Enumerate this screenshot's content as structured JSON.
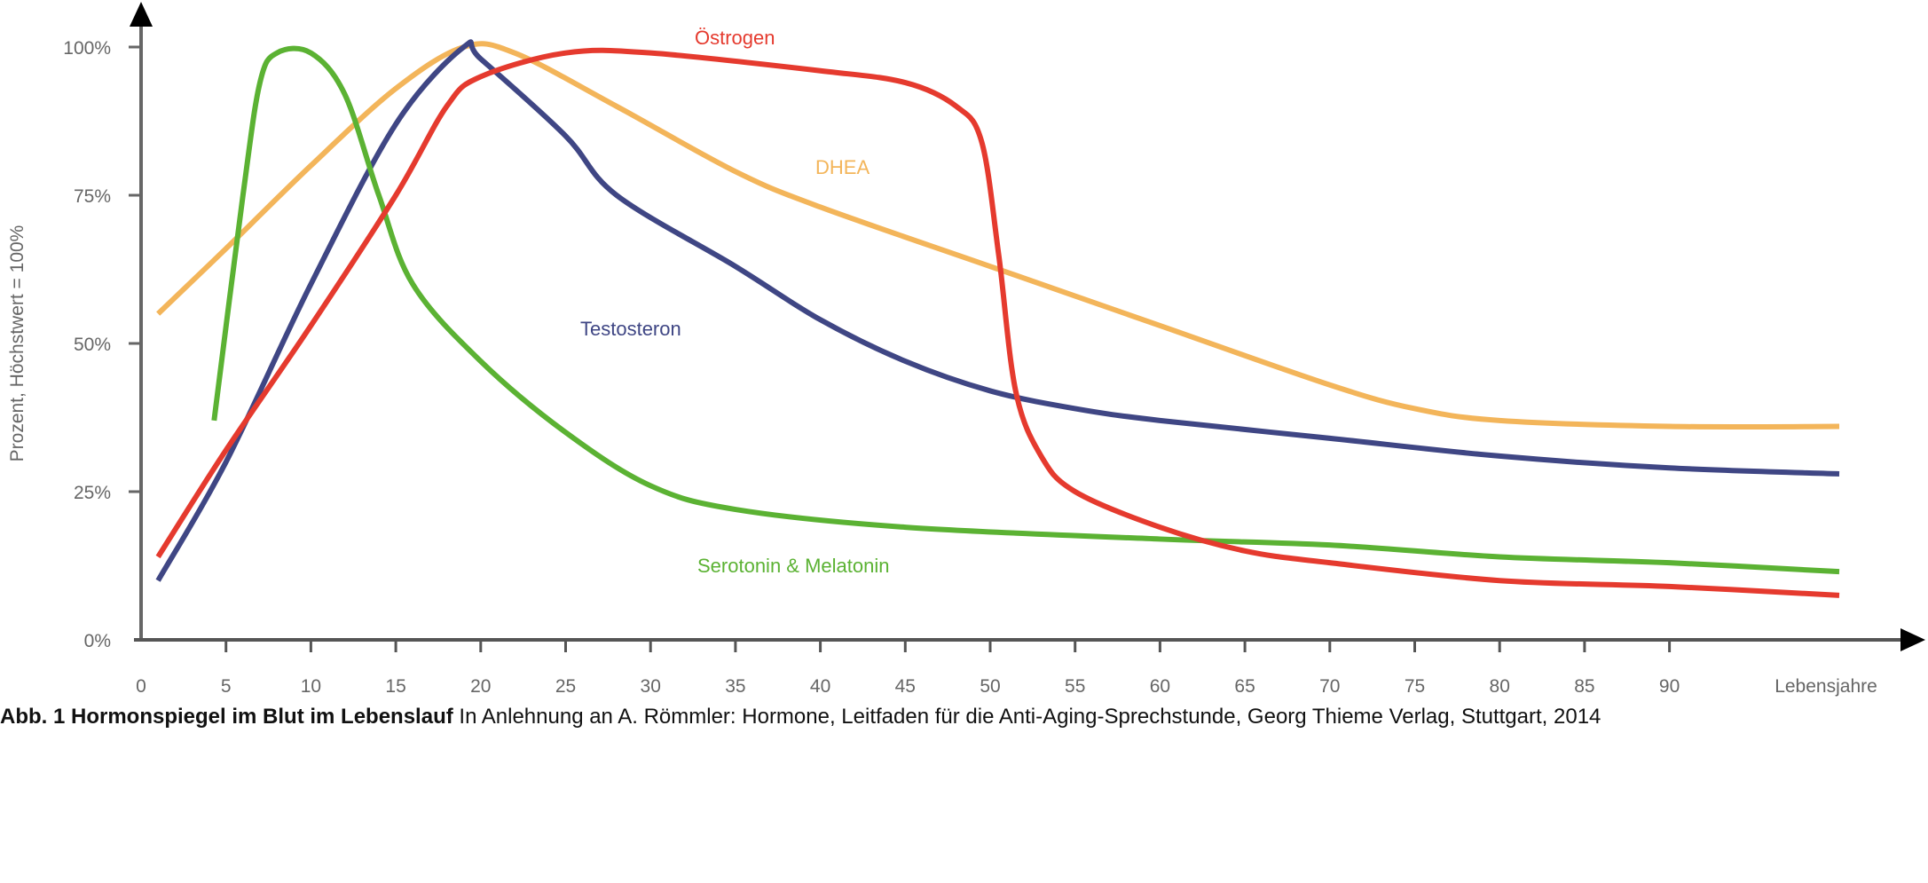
{
  "chart_data": {
    "type": "line",
    "title": "",
    "xlabel": "Lebensjahre",
    "ylabel": "Prozent, Höchstwert = 100%",
    "xlim": [
      0,
      100
    ],
    "ylim": [
      0,
      100
    ],
    "grid": false,
    "x_ticks": [
      "0",
      "5",
      "10",
      "15",
      "20",
      "25",
      "30",
      "35",
      "40",
      "45",
      "50",
      "55",
      "60",
      "65",
      "70",
      "75",
      "80",
      "85",
      "90"
    ],
    "y_ticks": [
      "0%",
      "25%",
      "50%",
      "75%",
      "100%"
    ],
    "series": [
      {
        "name": "DHEA",
        "color": "#f3b55a",
        "x": [
          1,
          5,
          10,
          15,
          19,
          22,
          28,
          35,
          40,
          50,
          60,
          70,
          75,
          80,
          90,
          100
        ],
        "y": [
          55,
          66,
          80,
          93,
          100,
          99,
          90,
          79,
          73,
          63,
          53,
          43,
          39,
          37,
          36,
          36
        ]
      },
      {
        "name": "Testosteron",
        "color": "#3f4684",
        "x": [
          1,
          5,
          10,
          15,
          19,
          20,
          25,
          28,
          35,
          40,
          45,
          50,
          55,
          60,
          70,
          80,
          90,
          100
        ],
        "y": [
          10,
          30,
          60,
          87,
          100,
          98,
          85,
          75,
          63,
          54,
          47,
          42,
          39,
          37,
          34,
          31,
          29,
          28
        ]
      },
      {
        "name": "Serotonin & Melatonin",
        "color": "#5bb233",
        "x": [
          4.3,
          6,
          7,
          8,
          10,
          12,
          14,
          16,
          20,
          25,
          30,
          35,
          45,
          60,
          70,
          80,
          90,
          100
        ],
        "y": [
          37,
          75,
          94,
          99,
          99,
          92,
          75,
          60,
          47,
          35,
          26,
          22,
          19,
          17,
          16,
          14,
          13,
          11.5
        ]
      },
      {
        "name": "Östrogen",
        "color": "#e53a2e",
        "x": [
          1,
          5,
          10,
          15,
          18,
          20,
          25,
          30,
          40,
          45,
          48,
          49.5,
          50.5,
          51.5,
          53,
          55,
          60,
          65,
          70,
          80,
          90,
          100
        ],
        "y": [
          14,
          32,
          53,
          75,
          90,
          95,
          99,
          99,
          96,
          94,
          90,
          84,
          65,
          42,
          31,
          25,
          19,
          15,
          13,
          10,
          9,
          7.5
        ]
      }
    ],
    "annotations": [
      "Östrogen",
      "DHEA",
      "Testosteron",
      "Serotonin & Melatonin"
    ]
  },
  "caption": {
    "bold": "Abb. 1 Hormonspiegel im Blut im Lebenslauf",
    "text": " In Anlehnung an A. Römmler: Hormone, Leitfaden für die Anti-Aging-Sprechstunde, Georg Thieme Verlag, Stuttgart, 2014"
  }
}
